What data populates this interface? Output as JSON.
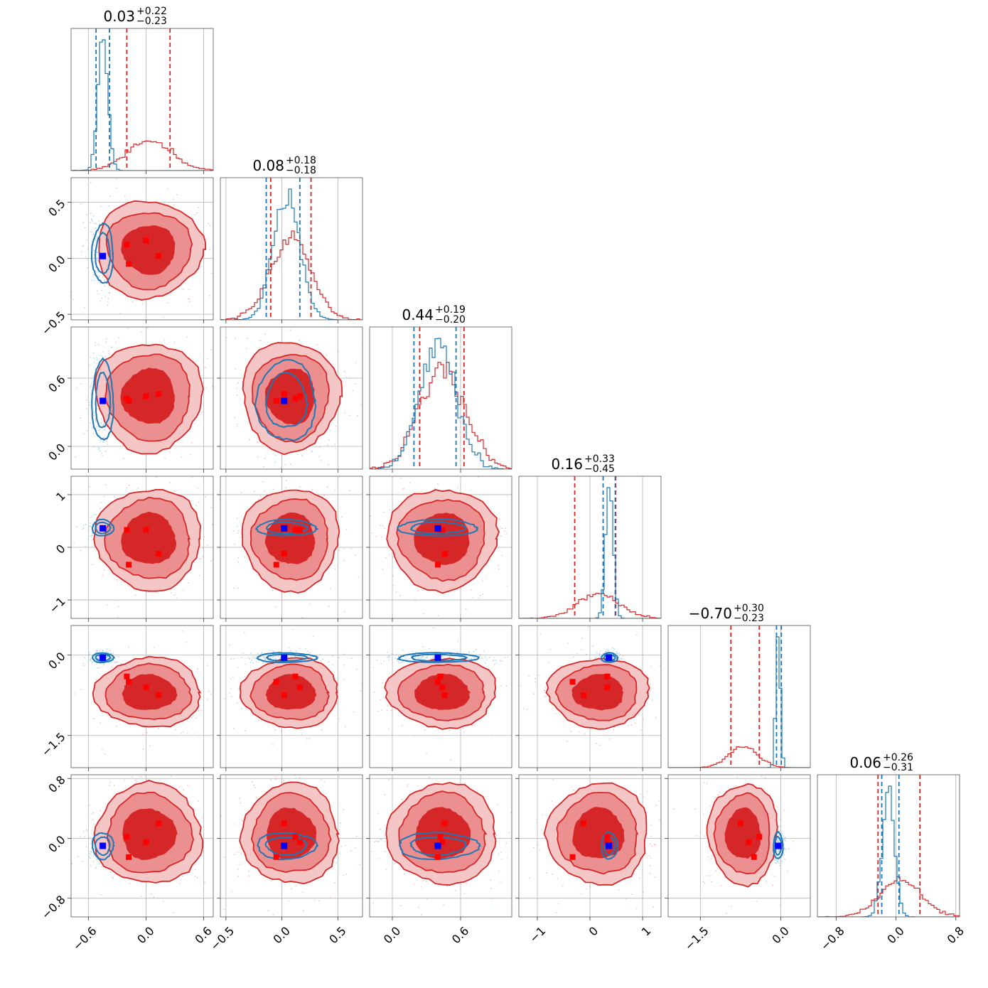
{
  "chart_data": {
    "type": "corner",
    "n_params": 6,
    "grid": true,
    "colors": {
      "red": "#d62728",
      "red_fill_outer": "#f5c6c6",
      "red_fill_mid": "#eb8f90",
      "red_fill_inner": "#d62728",
      "blue": "#1f77b4",
      "marker_red": "#ff0000",
      "marker_blue": "#0000ff",
      "gridline": "#b0b0b0"
    },
    "series": [
      {
        "color": "red",
        "means": [
          0.03,
          0.08,
          0.44,
          0.16,
          -0.7,
          0.06
        ],
        "sds": [
          0.23,
          0.18,
          0.2,
          0.4,
          0.27,
          0.28
        ],
        "quantile_lines": [
          [
            -0.2,
            0.25
          ],
          [
            -0.1,
            0.26
          ],
          [
            0.24,
            0.63
          ],
          [
            -0.29,
            0.49
          ],
          [
            -0.93,
            -0.4
          ],
          [
            -0.24,
            0.32
          ]
        ],
        "filled": true
      },
      {
        "color": "blue",
        "means": [
          -0.45,
          0.04,
          0.4,
          0.37,
          -0.05,
          -0.1
        ],
        "sds": [
          0.05,
          0.12,
          0.16,
          0.07,
          0.04,
          0.08
        ],
        "quantile_lines": [
          [
            -0.52,
            -0.38
          ],
          [
            -0.14,
            0.16
          ],
          [
            0.19,
            0.56
          ],
          [
            0.25,
            0.48
          ],
          [
            -0.08,
            0.01
          ],
          [
            -0.19,
            0.04
          ]
        ],
        "filled": false
      }
    ],
    "titles": [
      {
        "value": "0.03",
        "upper": "+0.22",
        "lower": "−0.23"
      },
      {
        "value": "0.08",
        "upper": "+0.18",
        "lower": "−0.18"
      },
      {
        "value": "0.44",
        "upper": "+0.19",
        "lower": "−0.20"
      },
      {
        "value": "0.16",
        "upper": "+0.33",
        "lower": "−0.45"
      },
      {
        "value": "−0.70",
        "upper": "+0.30",
        "lower": "−0.23"
      },
      {
        "value": "0.06",
        "upper": "+0.26",
        "lower": "−0.31"
      }
    ],
    "axis_ranges": [
      [
        -0.78,
        0.7
      ],
      [
        -0.55,
        0.72
      ],
      [
        -0.2,
        1.05
      ],
      [
        -1.35,
        1.35
      ],
      [
        -2.1,
        0.55
      ],
      [
        -1.05,
        0.85
      ]
    ],
    "ticks": [
      {
        "values": [
          -0.6,
          0.0,
          0.6
        ],
        "labels": [
          "−0.6",
          "0.0",
          "0.6"
        ]
      },
      {
        "values": [
          -0.5,
          0.0,
          0.5
        ],
        "labels": [
          "−0.5",
          "0.0",
          "0.5"
        ]
      },
      {
        "values": [
          0.0,
          0.6
        ],
        "labels": [
          "0.0",
          "0.6"
        ]
      },
      {
        "values": [
          -1,
          0,
          1
        ],
        "labels": [
          "−1",
          "0",
          "1"
        ]
      },
      {
        "values": [
          -1.5,
          0.0
        ],
        "labels": [
          "−1.5",
          "0.0"
        ]
      },
      {
        "values": [
          -0.8,
          0.0,
          0.8
        ],
        "labels": [
          "−0.8",
          "0.0",
          "0.8"
        ]
      }
    ],
    "blue_markers": [
      -0.45,
      0.02,
      0.4,
      0.36,
      -0.05,
      -0.1
    ],
    "red_markers": [
      [
        -0.2,
        0.12,
        0.42,
        0.33,
        -0.4,
        0.02
      ],
      [
        0.0,
        0.16,
        0.44,
        0.33,
        -0.6,
        -0.05
      ],
      [
        0.13,
        0.02,
        0.46,
        -0.12,
        -0.75,
        0.2
      ],
      [
        -0.18,
        -0.05,
        0.4,
        -0.33,
        -0.5,
        -0.25
      ]
    ]
  }
}
